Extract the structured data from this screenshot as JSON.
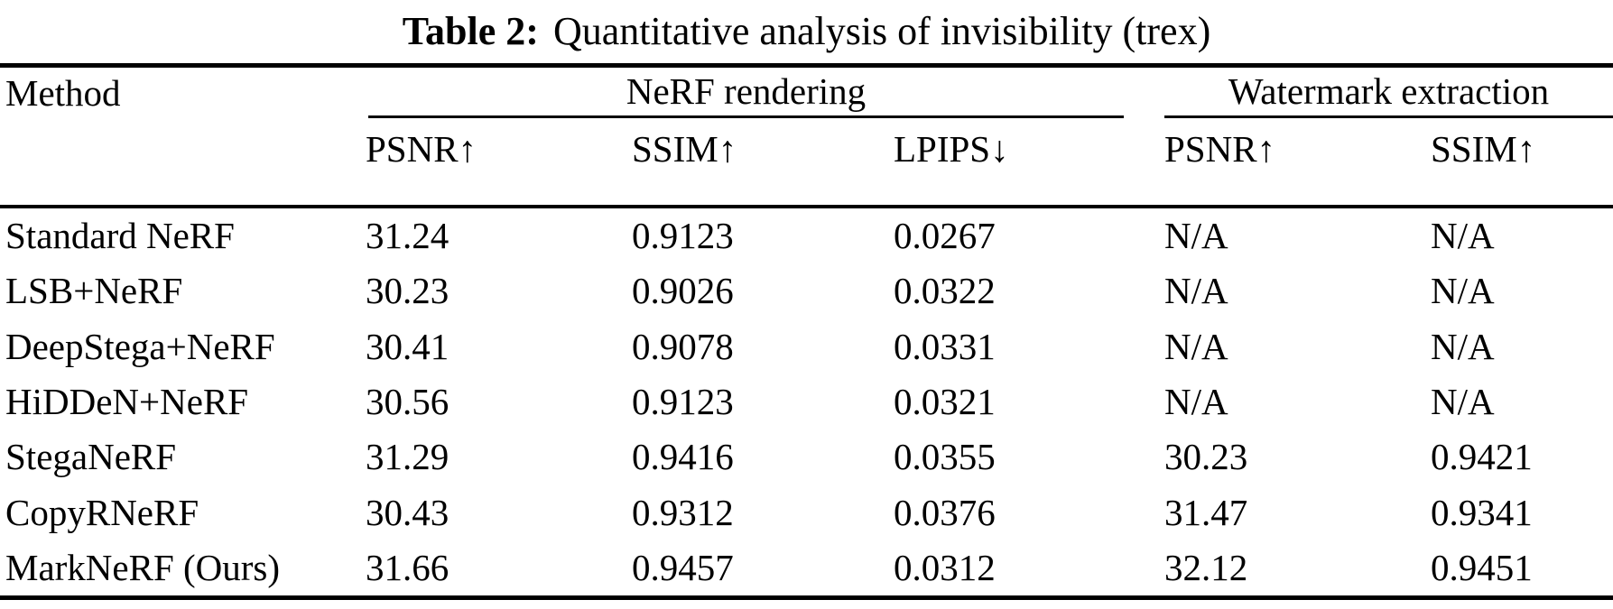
{
  "caption": {
    "label": "Table 2:",
    "text": "Quantitative analysis of invisibility (trex)"
  },
  "table": {
    "method_header": "Method",
    "groups": {
      "nerf": "NeRF rendering",
      "watermark": "Watermark extraction"
    },
    "subheaders": [
      "PSNR↑",
      "SSIM↑",
      "LPIPS↓",
      "PSNR↑",
      "SSIM↑"
    ],
    "rows": [
      {
        "method": "Standard NeRF",
        "values": [
          "31.24",
          "0.9123",
          "0.0267",
          "N/A",
          "N/A"
        ]
      },
      {
        "method": "LSB+NeRF",
        "values": [
          "30.23",
          "0.9026",
          "0.0322",
          "N/A",
          "N/A"
        ]
      },
      {
        "method": "DeepStega+NeRF",
        "values": [
          "30.41",
          "0.9078",
          "0.0331",
          "N/A",
          "N/A"
        ]
      },
      {
        "method": "HiDDeN+NeRF",
        "values": [
          "30.56",
          "0.9123",
          "0.0321",
          "N/A",
          "N/A"
        ]
      },
      {
        "method": "StegaNeRF",
        "values": [
          "31.29",
          "0.9416",
          "0.0355",
          "30.23",
          "0.9421"
        ]
      },
      {
        "method": "CopyRNeRF",
        "values": [
          "30.43",
          "0.9312",
          "0.0376",
          "31.47",
          "0.9341"
        ]
      },
      {
        "method": "MarkNeRF (Ours)",
        "values": [
          "31.66",
          "0.9457",
          "0.0312",
          "32.12",
          "0.9451"
        ]
      }
    ]
  },
  "chart_data": {
    "type": "table",
    "title": "Table 2: Quantitative analysis of invisibility (trex)",
    "columns": [
      "Method",
      "NeRF rendering PSNR↑",
      "NeRF rendering SSIM↑",
      "NeRF rendering LPIPS↓",
      "Watermark extraction PSNR↑",
      "Watermark extraction SSIM↑"
    ],
    "rows": [
      [
        "Standard NeRF",
        "31.24",
        "0.9123",
        "0.0267",
        "N/A",
        "N/A"
      ],
      [
        "LSB+NeRF",
        "30.23",
        "0.9026",
        "0.0322",
        "N/A",
        "N/A"
      ],
      [
        "DeepStega+NeRF",
        "30.41",
        "0.9078",
        "0.0331",
        "N/A",
        "N/A"
      ],
      [
        "HiDDeN+NeRF",
        "30.56",
        "0.9123",
        "0.0321",
        "N/A",
        "N/A"
      ],
      [
        "StegaNeRF",
        "31.29",
        "0.9416",
        "0.0355",
        "30.23",
        "0.9421"
      ],
      [
        "CopyRNeRF",
        "30.43",
        "0.9312",
        "0.0376",
        "31.47",
        "0.9341"
      ],
      [
        "MarkNeRF (Ours)",
        "31.66",
        "0.9457",
        "0.0312",
        "32.12",
        "0.9451"
      ]
    ]
  }
}
